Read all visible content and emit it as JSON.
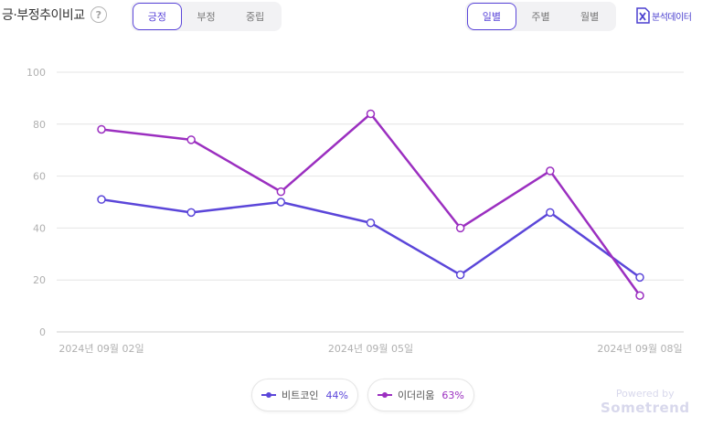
{
  "header": {
    "title": "긍·부정추이비교",
    "help": "?"
  },
  "sentiment_tabs": [
    {
      "label": "긍정",
      "active": true
    },
    {
      "label": "부정",
      "active": false
    },
    {
      "label": "중립",
      "active": false
    }
  ],
  "period_tabs": [
    {
      "label": "일별",
      "active": true
    },
    {
      "label": "주별",
      "active": false
    },
    {
      "label": "월별",
      "active": false
    }
  ],
  "data_link": {
    "label": "분석데이터",
    "icon": "excel-icon"
  },
  "legend": [
    {
      "name": "비트코인",
      "pct": "44%",
      "color": "#5b46d9"
    },
    {
      "name": "이더리움",
      "pct": "63%",
      "color": "#9b2fc0"
    }
  ],
  "branding": {
    "line1": "Powered by",
    "line2": "Sometrend"
  },
  "colors": {
    "accent": "#5b46d9",
    "series1": "#5b46d9",
    "series2": "#9b2fc0",
    "grid": "#e4e4e4"
  },
  "chart_data": {
    "type": "line",
    "x": [
      "2024-09-02",
      "2024-09-03",
      "2024-09-04",
      "2024-09-05",
      "2024-09-06",
      "2024-09-07",
      "2024-09-08"
    ],
    "x_tick_labels": [
      {
        "index": 0,
        "label": "2024년 09월 02일"
      },
      {
        "index": 3,
        "label": "2024년 09월 05일"
      },
      {
        "index": 6,
        "label": "2024년 09월 08일"
      }
    ],
    "y_ticks": [
      "0",
      "20",
      "40",
      "60",
      "80",
      "100"
    ],
    "ylim": [
      0,
      100
    ],
    "grid": true,
    "series": [
      {
        "name": "비트코인",
        "values": [
          51,
          46,
          50,
          42,
          22,
          46,
          21
        ]
      },
      {
        "name": "이더리움",
        "values": [
          78,
          74,
          54,
          84,
          40,
          62,
          14
        ]
      }
    ]
  }
}
